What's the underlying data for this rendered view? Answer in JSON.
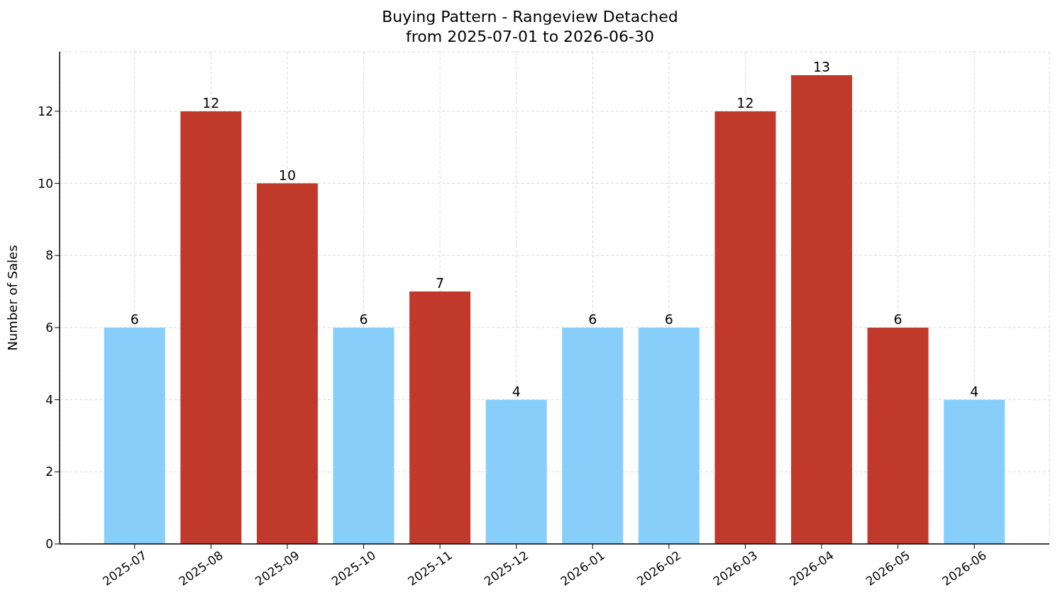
{
  "chart_data": {
    "type": "bar",
    "title": "Buying Pattern - Rangeview Detached",
    "subtitle": "from 2025-07-01 to 2026-06-30",
    "ylabel": "Number of Sales",
    "categories": [
      "2025-07",
      "2025-08",
      "2025-09",
      "2025-10",
      "2025-11",
      "2025-12",
      "2026-01",
      "2026-02",
      "2026-03",
      "2026-04",
      "2026-05",
      "2026-06"
    ],
    "values": [
      6,
      12,
      10,
      6,
      7,
      4,
      6,
      6,
      12,
      13,
      6,
      4
    ],
    "colors": [
      "#87cefa",
      "#c0392b",
      "#c0392b",
      "#87cefa",
      "#c0392b",
      "#87cefa",
      "#87cefa",
      "#87cefa",
      "#c0392b",
      "#c0392b",
      "#c0392b",
      "#87cefa"
    ],
    "ylim": [
      0,
      13.65
    ],
    "yticks": [
      0,
      2,
      4,
      6,
      8,
      10,
      12
    ],
    "grid": true,
    "data_labels": true
  }
}
